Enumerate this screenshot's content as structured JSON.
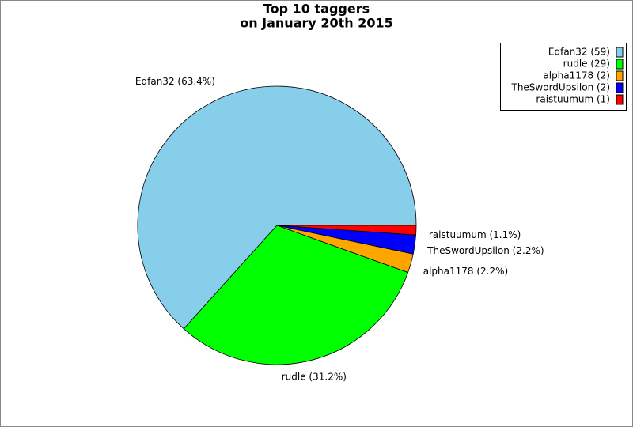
{
  "chart_data": {
    "type": "pie",
    "title": [
      "Top 10 taggers",
      "on January 20th 2015"
    ],
    "categories": [
      "Edfan32 (59)",
      "rudle (29)",
      "alpha1178 (2)",
      "TheSwordUpsilon (2)",
      "raistuumum (1)"
    ],
    "values": [
      63.4,
      31.2,
      2.2,
      2.2,
      1.1
    ],
    "value_labels": [
      "Edfan32 (63.4%)",
      "rudle (31.2%)",
      "alpha1178 (2.2%)",
      "TheSwordUpsilon (2.2%)",
      "raistuumum (1.1%)"
    ],
    "colors": [
      "#87ceeb",
      "#00ff00",
      "#ffa500",
      "#0000ff",
      "#ff0000"
    ],
    "legend": "top-right"
  }
}
